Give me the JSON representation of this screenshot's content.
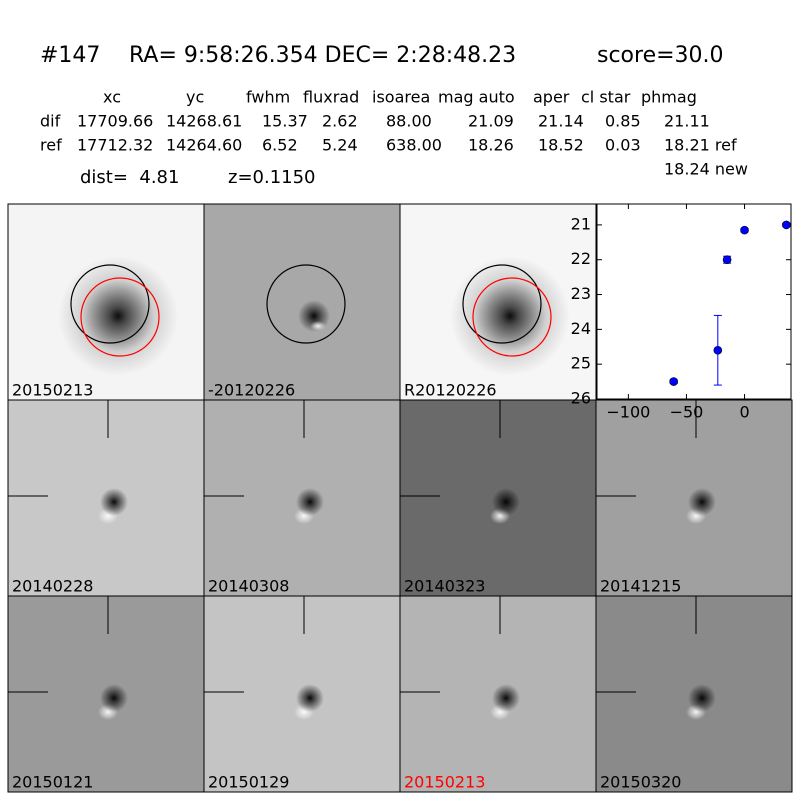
{
  "header": {
    "id": "#147",
    "coords": "RA= 9:58:26.354 DEC= 2:28:48.23",
    "score": "score=30.0"
  },
  "table": {
    "columns": [
      "xc",
      "yc",
      "fwhm",
      "fluxrad",
      "isoarea",
      "mag auto",
      "aper",
      "cl star",
      "phmag"
    ],
    "rows": [
      [
        "dif",
        "17709.66",
        "14268.61",
        "15.37",
        "2.62",
        "88.00",
        "21.09",
        "21.14",
        "0.85",
        "21.11"
      ],
      [
        "ref",
        "17712.32",
        "14264.60",
        "6.52",
        "5.24",
        "638.00",
        "18.26",
        "18.52",
        "0.03",
        "18.21 ref"
      ]
    ],
    "extra": "18.24 new"
  },
  "info": {
    "dist": "dist=  4.81",
    "z": "z=0.1150"
  },
  "stamps": [
    {
      "label": "20150213"
    },
    {
      "label": "-20120226"
    },
    {
      "label": "R20120226"
    },
    {
      "label": "20140228"
    },
    {
      "label": "20140308"
    },
    {
      "label": "20140323"
    },
    {
      "label": "20141215"
    },
    {
      "label": "20150121"
    },
    {
      "label": "20150129"
    },
    {
      "label": "20150213",
      "color": "#ff0000"
    },
    {
      "label": "20150320"
    }
  ],
  "chart_data": {
    "type": "errorbar",
    "color": "#0000ff",
    "x": [
      -61,
      -23,
      -15,
      0,
      36
    ],
    "values": [
      25.5,
      24.6,
      22.0,
      21.15,
      21.0
    ],
    "errors": [
      0.05,
      1.0,
      0.1,
      0.05,
      0.05
    ],
    "xlim": [
      -127,
      40
    ],
    "ylim": [
      26,
      20.4
    ],
    "xticks": [
      {
        "value": -100,
        "label": "−100"
      },
      {
        "value": -50,
        "label": "−50"
      },
      0
    ],
    "yticks": [
      21,
      22,
      23,
      24,
      25,
      26
    ]
  }
}
